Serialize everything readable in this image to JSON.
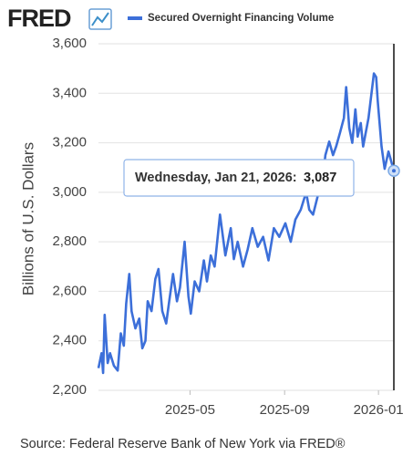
{
  "logo": "FRED",
  "chart_data": {
    "type": "line",
    "ylabel": "Billions of U.S. Dollars",
    "source": "Source: Federal Reserve Bank of New York via FRED®",
    "ylim": [
      2200,
      3600
    ],
    "yticks": [
      {
        "value": 2200,
        "label": "2,200"
      },
      {
        "value": 2400,
        "label": "2,400"
      },
      {
        "value": 2600,
        "label": "2,600"
      },
      {
        "value": 2800,
        "label": "2,800"
      },
      {
        "value": 3000,
        "label": "3,000"
      },
      {
        "value": 3200,
        "label": "3,200"
      },
      {
        "value": 3400,
        "label": "3,400"
      },
      {
        "value": 3600,
        "label": "3,600"
      }
    ],
    "xticks": [
      "2025-05",
      "2025-09",
      "2026-01"
    ],
    "grid": true,
    "series": [
      {
        "name": "Secured Overnight Financing Volume",
        "color": "#3c6fd9",
        "x": [
          "2025-01-02",
          "2025-01-06",
          "2025-01-08",
          "2025-01-10",
          "2025-01-14",
          "2025-01-17",
          "2025-01-22",
          "2025-01-27",
          "2025-01-31",
          "2025-02-04",
          "2025-02-07",
          "2025-02-11",
          "2025-02-14",
          "2025-02-19",
          "2025-02-24",
          "2025-02-28",
          "2025-03-04",
          "2025-03-07",
          "2025-03-12",
          "2025-03-17",
          "2025-03-21",
          "2025-03-26",
          "2025-03-31",
          "2025-04-04",
          "2025-04-09",
          "2025-04-14",
          "2025-04-18",
          "2025-04-24",
          "2025-04-29",
          "2025-05-02",
          "2025-05-07",
          "2025-05-13",
          "2025-05-19",
          "2025-05-23",
          "2025-05-28",
          "2025-06-02",
          "2025-06-09",
          "2025-06-16",
          "2025-06-23",
          "2025-06-27",
          "2025-07-02",
          "2025-07-09",
          "2025-07-15",
          "2025-07-21",
          "2025-07-28",
          "2025-08-04",
          "2025-08-11",
          "2025-08-18",
          "2025-08-25",
          "2025-09-02",
          "2025-09-09",
          "2025-09-15",
          "2025-09-22",
          "2025-09-29",
          "2025-10-03",
          "2025-10-08",
          "2025-10-14",
          "2025-10-20",
          "2025-10-24",
          "2025-10-29",
          "2025-11-03",
          "2025-11-07",
          "2025-11-12",
          "2025-11-17",
          "2025-11-20",
          "2025-11-24",
          "2025-11-28",
          "2025-12-02",
          "2025-12-05",
          "2025-12-09",
          "2025-12-12",
          "2025-12-19",
          "2025-12-26",
          "2025-12-29",
          "2025-12-31",
          "2026-01-05",
          "2026-01-09",
          "2026-01-14",
          "2026-01-21"
        ],
        "values": [
          2290,
          2350,
          2270,
          2505,
          2310,
          2350,
          2300,
          2280,
          2430,
          2380,
          2550,
          2670,
          2520,
          2450,
          2490,
          2370,
          2400,
          2560,
          2520,
          2650,
          2690,
          2520,
          2470,
          2560,
          2670,
          2560,
          2615,
          2800,
          2580,
          2510,
          2640,
          2600,
          2725,
          2640,
          2745,
          2700,
          2910,
          2745,
          2855,
          2730,
          2800,
          2700,
          2770,
          2855,
          2780,
          2820,
          2725,
          2855,
          2820,
          2875,
          2800,
          2890,
          2930,
          3000,
          2930,
          2910,
          2985,
          3040,
          3150,
          3205,
          3150,
          3185,
          3240,
          3300,
          3425,
          3260,
          3200,
          3335,
          3225,
          3280,
          3185,
          3300,
          3480,
          3465,
          3370,
          3185,
          3095,
          3165,
          3087
        ]
      }
    ],
    "tooltip": {
      "date_label": "Wednesday, Jan 21, 2026:",
      "value": 3087,
      "value_label": "3,087"
    }
  }
}
